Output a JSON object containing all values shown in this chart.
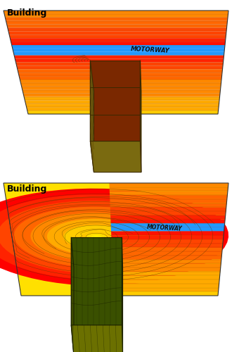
{
  "figure_width": 3.3,
  "figure_height": 5.0,
  "dpi": 100,
  "background_color": "#ffffff",
  "top_panel": {
    "building_label": "Building",
    "motorway_label": "MOTORWAY",
    "building_top_color": "#7A6A10",
    "building_front_color": "#7A2800",
    "building_front_color2": "#8B3500",
    "building_side_color": "#5A4800",
    "building_left_color": "#6A5A10",
    "building_outline": "#3A2800",
    "contour_color": "#5A3800"
  },
  "bottom_panel": {
    "building_label": "Building",
    "motorway_label": "MOTORWAY",
    "building_top_color": "#6B7000",
    "building_front_color": "#3A5000",
    "building_front_color2": "#4A6000",
    "building_side_color": "#2A3800",
    "building_left_color": "#506000",
    "building_outline": "#1A2000",
    "contour_color": "#3A4000"
  }
}
